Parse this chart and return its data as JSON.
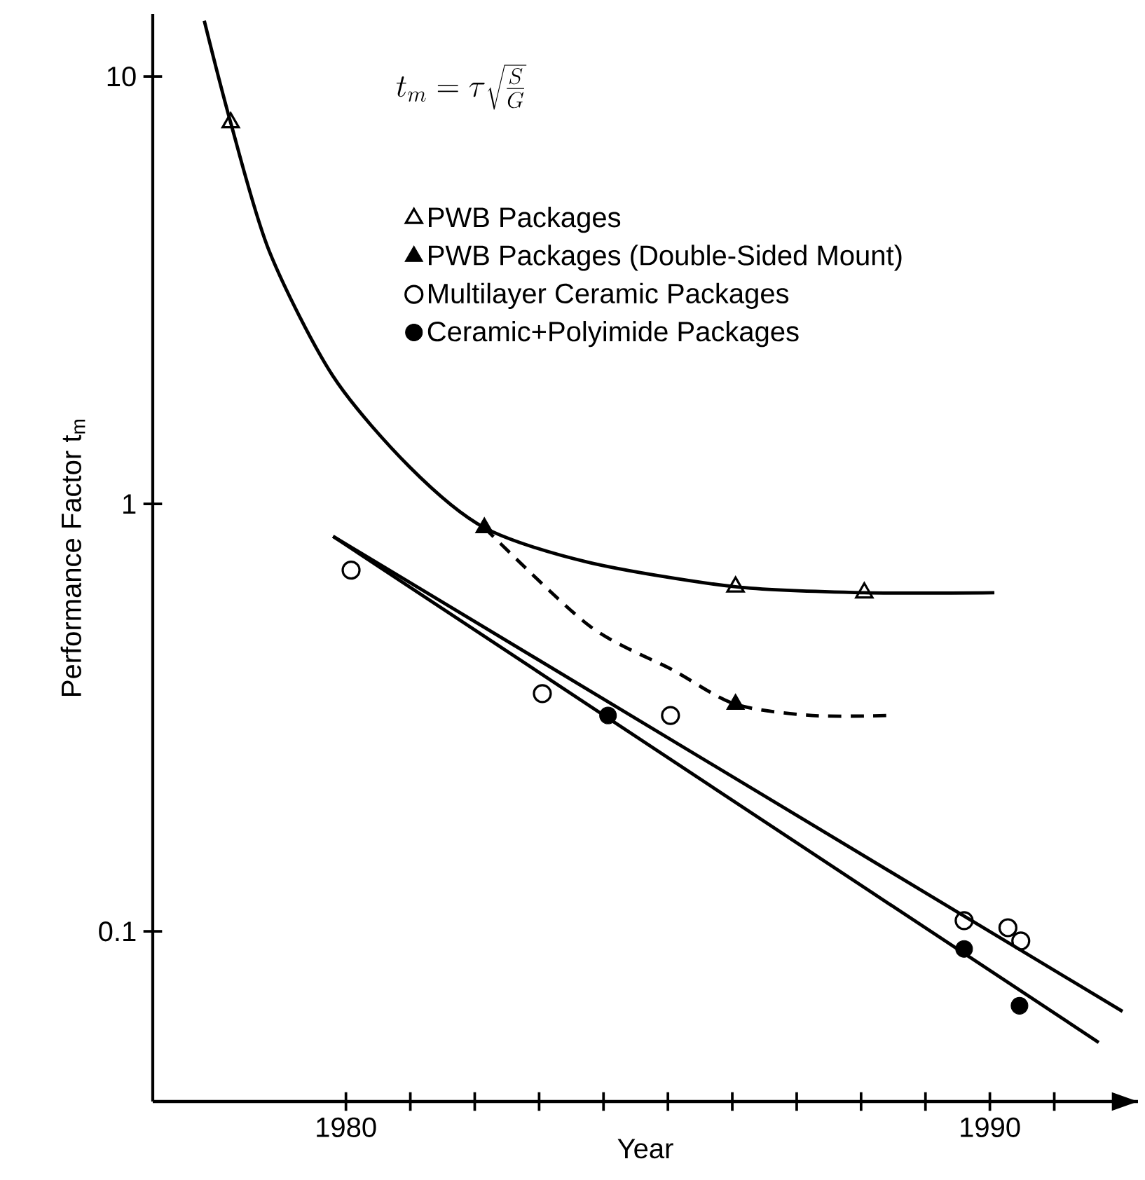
{
  "chart_data": {
    "type": "scatter",
    "xlabel": "Year",
    "ylabel": "Performance Factor  t$_{m}$",
    "annotations": [
      "t_{m} = \\tau \\sqrt{\\frac{S}{G}}"
    ],
    "log": "y",
    "legend": "top",
    "xlim": [
      1977,
      1992.3
    ],
    "ylim": [
      0.04,
      14
    ],
    "xticks": [
      1980,
      {
        "value": 1981,
        "label": null
      },
      {
        "value": 1982,
        "label": null
      },
      {
        "value": 1983,
        "label": null
      },
      {
        "value": 1984,
        "label": null
      },
      {
        "value": 1985,
        "label": null
      },
      {
        "value": 1986,
        "label": null
      },
      {
        "value": 1987,
        "label": null
      },
      {
        "value": 1988,
        "label": null
      },
      {
        "value": 1989,
        "label": null
      },
      1990,
      {
        "value": 1991,
        "label": null
      }
    ],
    "yticks": [
      0.1,
      1,
      10
    ],
    "series": [
      {
        "name": "PWB Packages",
        "marker": "triangle",
        "color": "#000000",
        "x": [
          1978.21,
          1986.05,
          1988.05
        ],
        "values": [
          7.8,
          0.64,
          0.62
        ]
      },
      {
        "name": "PWB Packages (Double-Sided Mount)",
        "marker": "triangle",
        "color": "#000000",
        "x": [
          1982.15,
          1986.05
        ],
        "values": [
          0.88,
          0.34
        ]
      },
      {
        "name": "Multilayer Ceramic Packages",
        "marker": "circle",
        "color": "#000000",
        "x": [
          1980.08,
          1983.05,
          1985.04,
          1989.6,
          1990.28,
          1990.48
        ],
        "values": [
          0.7,
          0.36,
          0.32,
          0.106,
          0.102,
          0.095
        ]
      },
      {
        "name": "Ceramic+Polyimide Packages",
        "marker": "circle",
        "color": "#000000",
        "x": [
          1984.07,
          1989.6,
          1990.46
        ],
        "values": [
          0.32,
          0.091,
          0.067
        ]
      },
      {
        "type": "line",
        "marker": "none",
        "line_style": "solid",
        "color": "#000000",
        "x": [
          1977.8,
          1978.21,
          1978.81,
          1979.8,
          1980.99,
          1982.15,
          1983.77,
          1986.05,
          1988.05,
          1990.07
        ],
        "values": [
          13.5,
          7.8,
          3.9,
          1.99,
          1.22,
          0.88,
          0.73,
          0.64,
          0.62,
          0.62
        ]
      },
      {
        "type": "line",
        "marker": "none",
        "line_style": "dashed",
        "color": "#000000",
        "x": [
          1982.15,
          1983.77,
          1985.06,
          1986.05,
          1987.24,
          1988.39
        ],
        "values": [
          0.88,
          0.52,
          0.41,
          0.34,
          0.32,
          0.32
        ]
      },
      {
        "type": "line",
        "marker": "none",
        "line_style": "solid",
        "color": "#000000",
        "x": [
          1979.8,
          1992.06
        ],
        "values": [
          0.84,
          0.065
        ]
      },
      {
        "type": "line",
        "marker": "none",
        "line_style": "solid",
        "color": "#000000",
        "x": [
          1979.8,
          1991.69
        ],
        "values": [
          0.84,
          0.055
        ]
      }
    ]
  }
}
